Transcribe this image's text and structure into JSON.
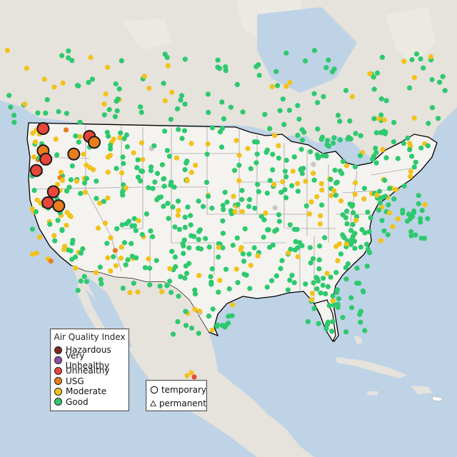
{
  "legend": {
    "title": "Air Quality Index",
    "categories": [
      {
        "label": "Hazardous",
        "color": "#7e2a1f"
      },
      {
        "label": "Very Unhealthy",
        "color": "#8f4fa3"
      },
      {
        "label": "Unhealthy",
        "color": "#e8463b"
      },
      {
        "label": "USG",
        "color": "#e97d1e"
      },
      {
        "label": "Moderate",
        "color": "#f2c21a"
      },
      {
        "label": "Good",
        "color": "#2ec96f"
      }
    ]
  },
  "site_legend": {
    "temporary": "temporary",
    "permanent": "permanent"
  },
  "map_style": {
    "water": "#bfd3e6",
    "land": "#f4f3ef",
    "land_outer": "#e6e2dc",
    "national_border": "#000000",
    "state_border": "#888888",
    "nodata_marker": "#c7c7c7"
  },
  "monitors_large": [
    {
      "lon": -123.1,
      "lat": 48.55,
      "aqi": "Unhealthy"
    },
    {
      "lon": -116.3,
      "lat": 47.55,
      "aqi": "Unhealthy"
    },
    {
      "lon": -115.6,
      "lat": 46.8,
      "aqi": "USG"
    },
    {
      "lon": -123.1,
      "lat": 45.7,
      "aqi": "USG"
    },
    {
      "lon": -118.6,
      "lat": 45.3,
      "aqi": "USG"
    },
    {
      "lon": -122.7,
      "lat": 44.65,
      "aqi": "Unhealthy"
    },
    {
      "lon": -124.1,
      "lat": 43.2,
      "aqi": "Unhealthy"
    },
    {
      "lon": -121.6,
      "lat": 40.5,
      "aqi": "Unhealthy"
    },
    {
      "lon": -122.4,
      "lat": 39.1,
      "aqi": "Unhealthy"
    },
    {
      "lon": -120.8,
      "lat": 38.7,
      "aqi": "USG"
    }
  ]
}
